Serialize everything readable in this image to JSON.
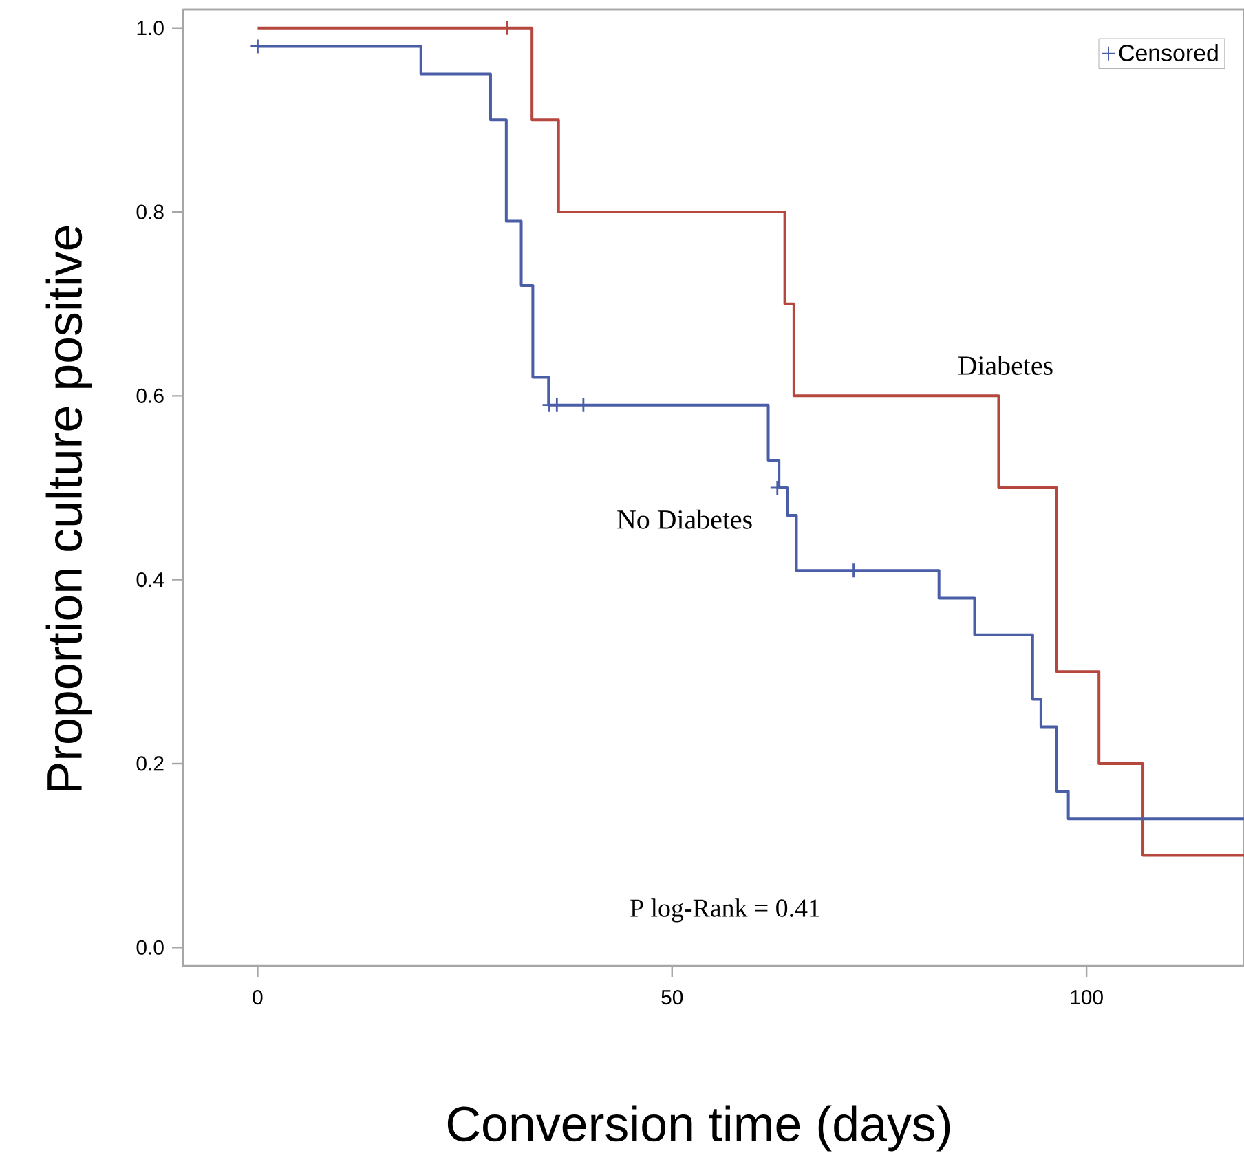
{
  "chart_data": {
    "type": "step",
    "xlabel": "Conversion time (days)",
    "ylabel": "Proportion culture positive",
    "annotations": [
      "P log-Rank = 0.41"
    ],
    "xlim": [
      -9,
      119
    ],
    "xticks": [
      0,
      50,
      100
    ],
    "ylim": [
      -0.02,
      1.02
    ],
    "yticks": [
      {
        "value": 0,
        "label": "0.0"
      },
      0.2,
      0.4,
      0.6,
      0.8,
      {
        "value": 1,
        "label": "1.0"
      }
    ],
    "legend": "top right",
    "grid": false,
    "series": [
      {
        "name": "Diabetes",
        "color": "#b5473f",
        "marker": "none",
        "x": [
          0,
          33.1,
          36.3,
          63.6,
          64.7,
          89.4,
          96.4,
          101.5,
          106.8,
          119
        ],
        "values": [
          1.0,
          0.9,
          0.8,
          0.7,
          0.6,
          0.5,
          0.3,
          0.2,
          0.1,
          0.1
        ]
      },
      {
        "name": "No Diabetes",
        "color": "#4a5ea8",
        "marker": "none",
        "x": [
          0,
          19.7,
          28.1,
          30.0,
          31.8,
          33.2,
          35.1,
          61.6,
          62.9,
          63.9,
          65.0,
          82.2,
          86.5,
          93.5,
          94.5,
          96.4,
          97.8,
          119
        ],
        "values": [
          0.98,
          0.95,
          0.9,
          0.79,
          0.72,
          0.62,
          0.59,
          0.53,
          0.5,
          0.47,
          0.41,
          0.38,
          0.34,
          0.27,
          0.24,
          0.17,
          0.14,
          0.14
        ]
      },
      {
        "name": "Censored",
        "type": "scatter",
        "marker": "cross",
        "color": "#4a5ea8",
        "x": [
          30.1,
          0,
          35.2,
          36.1,
          39.3,
          62.7,
          71.9
        ],
        "values": [
          1.0,
          0.98,
          0.59,
          0.59,
          0.59,
          0.5,
          0.41
        ],
        "colors": [
          "#b5473f",
          "#4a5ea8",
          "#4a5ea8",
          "#4a5ea8",
          "#4a5ea8",
          "#4a5ea8",
          "#4a5ea8"
        ]
      }
    ]
  }
}
